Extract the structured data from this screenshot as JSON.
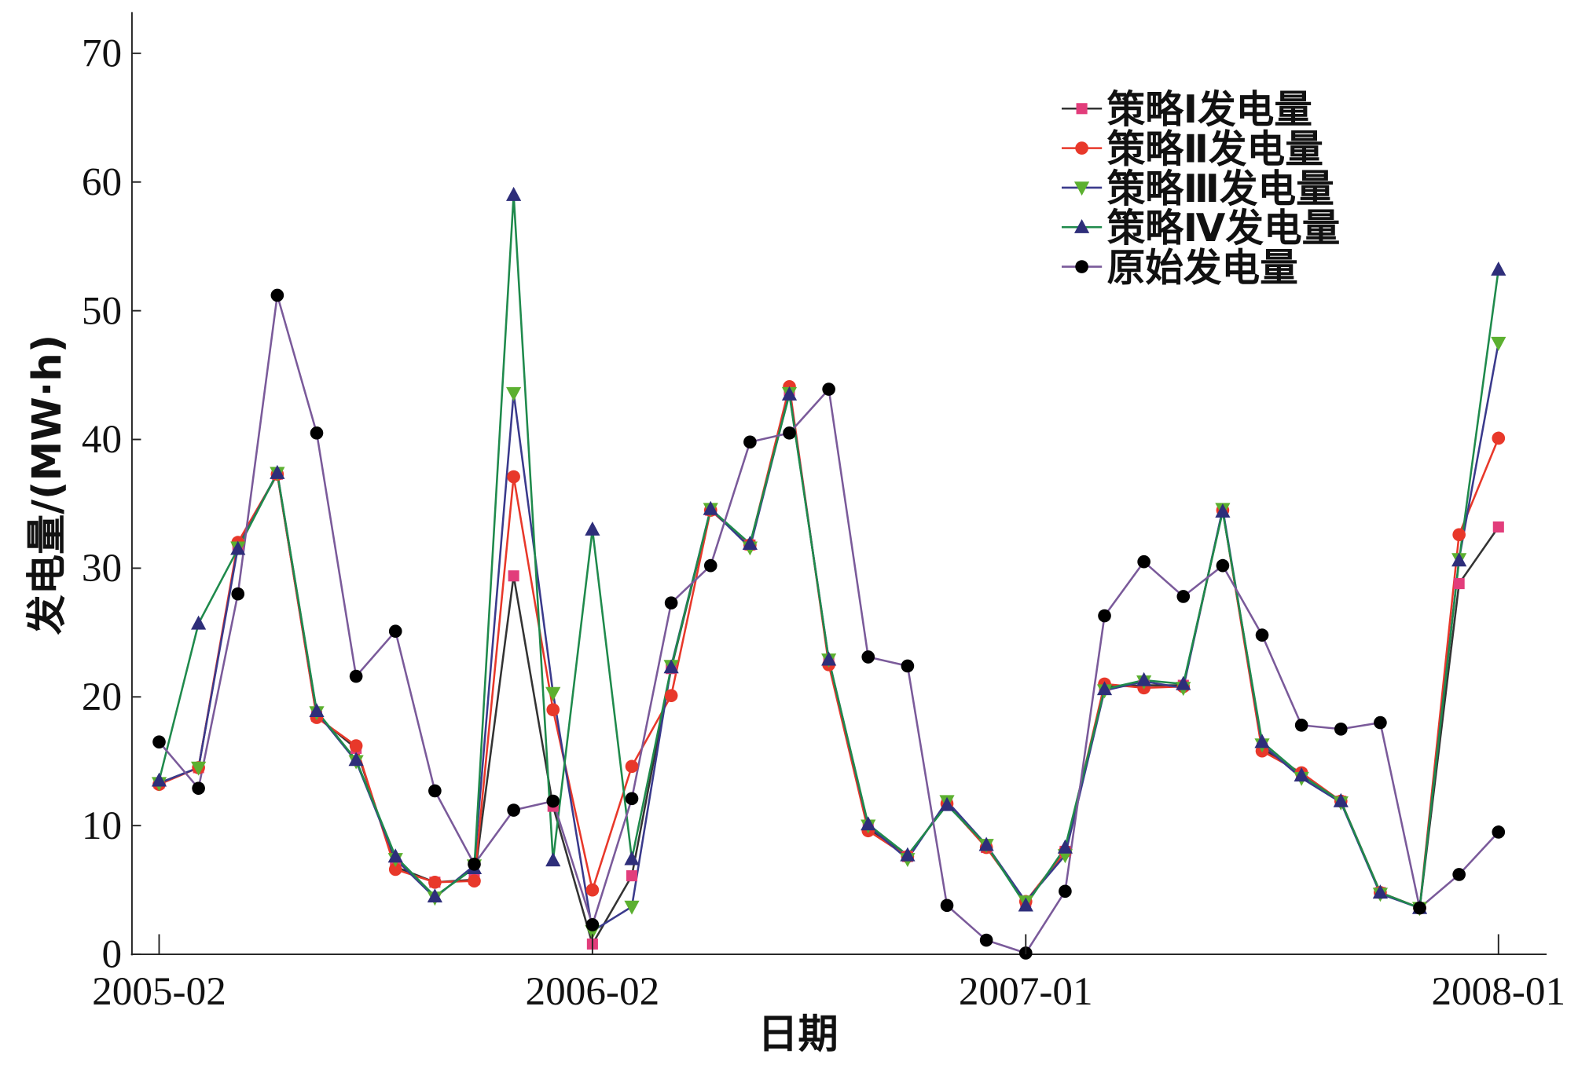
{
  "chart_data": {
    "type": "line",
    "x_label": "日期",
    "y_label": "发电量/(MW·h)",
    "categories": [
      "2005-02",
      null,
      null,
      null,
      null,
      null,
      null,
      null,
      null,
      null,
      null,
      "2006-02",
      null,
      null,
      null,
      null,
      null,
      null,
      null,
      null,
      null,
      null,
      "2007-01",
      null,
      null,
      null,
      null,
      null,
      null,
      null,
      null,
      null,
      null,
      null,
      "2008-01"
    ],
    "ylim": [
      0,
      70
    ],
    "yticks": [
      0,
      10,
      20,
      30,
      40,
      50,
      60,
      70
    ],
    "legend": "upper right",
    "series": [
      {
        "name": "策略Ⅰ发电量",
        "color": "#e23d7b",
        "line_color": "#333333",
        "marker": "square",
        "values": [
          13.3,
          14.5,
          31.8,
          37.3,
          18.5,
          16.0,
          6.8,
          5.6,
          5.8,
          29.4,
          11.5,
          0.8,
          6.1,
          22.2,
          34.5,
          31.8,
          43.8,
          22.7,
          9.8,
          7.6,
          11.7,
          8.3,
          4.1,
          8.0,
          20.8,
          20.9,
          20.9,
          34.5,
          16.0,
          14.0,
          11.9,
          4.8,
          3.6,
          28.8,
          33.2
        ]
      },
      {
        "name": "策略Ⅱ发电量",
        "color": "#e8382a",
        "line_color": "#e8382a",
        "marker": "circle",
        "values": [
          13.2,
          14.5,
          32.0,
          37.3,
          18.4,
          16.2,
          6.6,
          5.6,
          5.7,
          37.1,
          19.0,
          5.0,
          14.6,
          20.1,
          34.5,
          31.8,
          44.1,
          22.5,
          9.6,
          7.6,
          11.7,
          8.3,
          4.1,
          8.0,
          21.0,
          20.7,
          20.8,
          34.5,
          15.8,
          14.1,
          11.9,
          4.8,
          3.6,
          32.6,
          40.1
        ]
      },
      {
        "name": "策略Ⅲ发电量",
        "color": "#5cb030",
        "line_color": "#3a3a8c",
        "marker": "triangle-down",
        "values": [
          13.3,
          14.5,
          31.6,
          37.4,
          18.8,
          15.0,
          7.4,
          4.4,
          6.9,
          43.6,
          20.3,
          1.8,
          3.7,
          22.4,
          34.6,
          31.6,
          43.6,
          22.9,
          10.0,
          7.4,
          11.9,
          8.5,
          4.1,
          7.7,
          20.5,
          21.2,
          20.7,
          34.6,
          16.3,
          13.7,
          11.8,
          4.7,
          3.6,
          30.7,
          47.5
        ]
      },
      {
        "name": "策略Ⅳ发电量",
        "color": "#2e2e7a",
        "line_color": "#1f8a4c",
        "marker": "triangle-up",
        "values": [
          13.5,
          25.7,
          31.5,
          37.4,
          18.9,
          15.1,
          7.6,
          4.5,
          6.7,
          59.0,
          7.3,
          33.0,
          7.4,
          22.3,
          34.6,
          31.9,
          43.5,
          22.9,
          10.1,
          7.7,
          11.6,
          8.5,
          3.8,
          8.3,
          20.6,
          21.3,
          21.0,
          34.4,
          16.5,
          13.9,
          11.9,
          4.8,
          3.6,
          30.6,
          53.2
        ]
      },
      {
        "name": "原始发电量",
        "color": "#000000",
        "line_color": "#7a5a9a",
        "marker": "circle",
        "values": [
          16.5,
          12.9,
          28.0,
          51.2,
          40.5,
          21.6,
          25.1,
          12.7,
          7.0,
          11.2,
          11.9,
          2.3,
          12.1,
          27.3,
          30.2,
          39.8,
          40.5,
          43.9,
          23.1,
          22.4,
          3.8,
          1.1,
          0.1,
          4.9,
          26.3,
          30.5,
          27.8,
          30.2,
          24.8,
          17.8,
          17.5,
          18.0,
          3.6,
          6.2,
          9.5
        ]
      }
    ]
  }
}
